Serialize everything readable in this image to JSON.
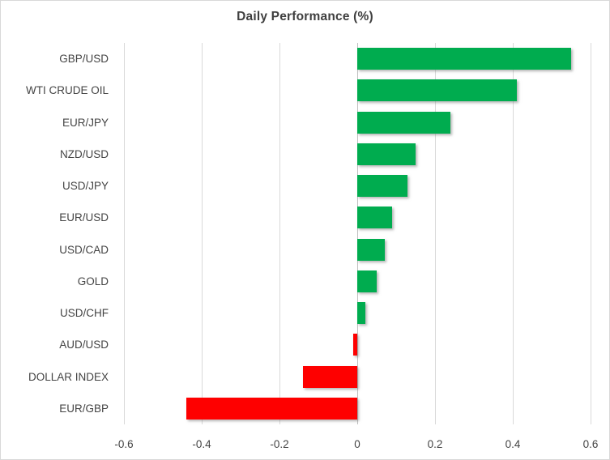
{
  "chart_data": {
    "type": "bar",
    "orientation": "horizontal",
    "title": "Daily Performance (%)",
    "categories": [
      "GBP/USD",
      "WTI CRUDE OIL",
      "EUR/JPY",
      "NZD/USD",
      "USD/JPY",
      "EUR/USD",
      "USD/CAD",
      "GOLD",
      "USD/CHF",
      "AUD/USD",
      "DOLLAR INDEX",
      "EUR/GBP"
    ],
    "values": [
      0.55,
      0.41,
      0.24,
      0.15,
      0.13,
      0.09,
      0.07,
      0.05,
      0.02,
      -0.01,
      -0.14,
      -0.44
    ],
    "xlabel": "",
    "ylabel": "",
    "xlim": [
      -0.6,
      0.6
    ],
    "xticks": [
      -0.6,
      -0.4,
      -0.2,
      0,
      0.2,
      0.4,
      0.6
    ],
    "xtick_labels": [
      "-0.6",
      "-0.4",
      "-0.2",
      "0",
      "0.2",
      "0.4",
      "0.6"
    ],
    "grid": "vertical-only",
    "legend": "none",
    "colors": {
      "positive_bar": "#00ac4f",
      "negative_bar": "#fe0000",
      "gridline": "#d9d9d9",
      "zero_line": "#bfbfbf",
      "axis_text": "#444444",
      "title_text": "#3f3f3f",
      "frame_border": "#d9d9d9",
      "background": "#ffffff"
    }
  }
}
